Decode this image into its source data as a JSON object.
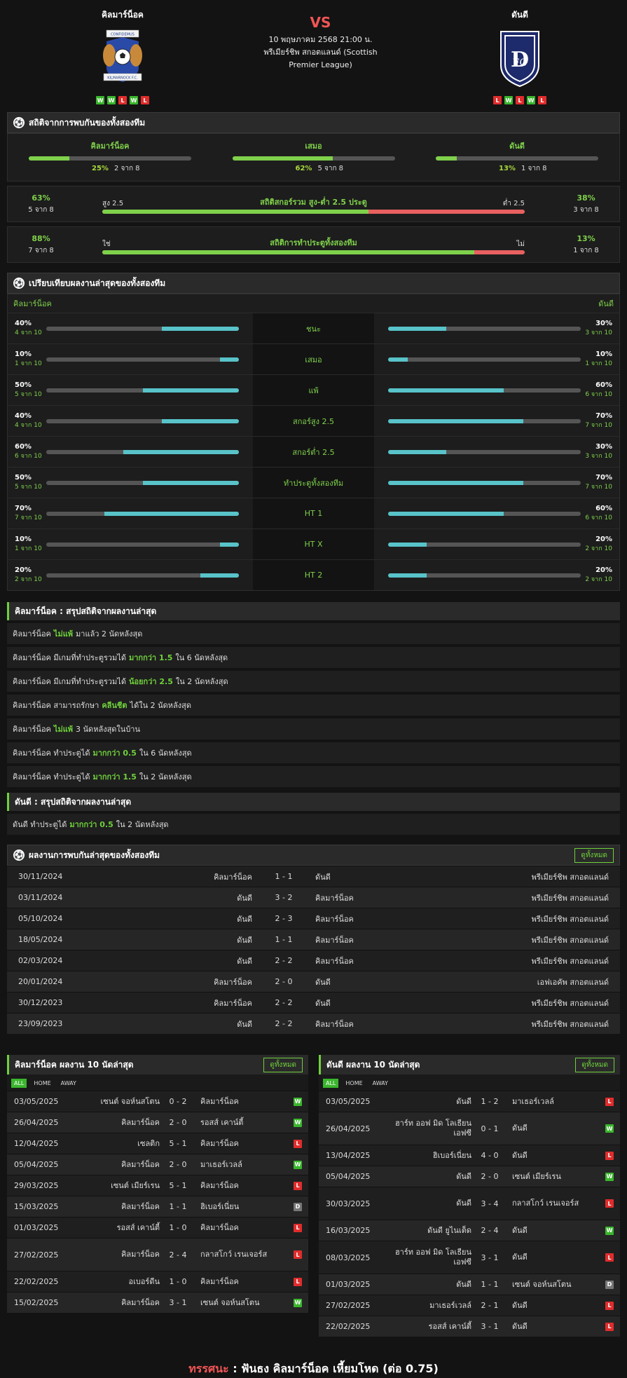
{
  "header": {
    "home_name": "คิลมาร์น็อค",
    "away_name": "ดันดี",
    "vs": "VS",
    "date": "10 พฤษภาคม 2568 21:00 น.",
    "league": "พรีเมียร์ชิพ สกอตแลนด์ (Scottish Premier League)",
    "home_form": [
      "W",
      "W",
      "L",
      "W",
      "L"
    ],
    "away_form": [
      "L",
      "W",
      "L",
      "W",
      "L"
    ],
    "home_crest_text": [
      "CONFIDEMUS",
      "KILMARNOCK F.C."
    ]
  },
  "h2h_section": {
    "title": "สถิติจากการพบกันของทั้งสองทีม",
    "items": [
      {
        "label": "คิลมาร์น็อค",
        "pct": "25%",
        "count": "2 จาก 8",
        "value": 25
      },
      {
        "label": "เสมอ",
        "pct": "62%",
        "count": "5 จาก 8",
        "value": 62
      },
      {
        "label": "ดันดี",
        "pct": "13%",
        "count": "1 จาก 8",
        "value": 13
      }
    ],
    "ou": {
      "title": "สถิติสกอร์รวม สูง-ต่ำ 2.5 ประตู",
      "left_label": "สูง 2.5",
      "right_label": "ต่ำ 2.5",
      "left_pct": "63%",
      "left_count": "5 จาก 8",
      "right_pct": "38%",
      "right_count": "3 จาก 8",
      "value": 63
    },
    "btts": {
      "title": "สถิติการทำประตูทั้งสองทีม",
      "left_label": "ใช่",
      "right_label": "ไม่",
      "left_pct": "88%",
      "left_count": "7 จาก 8",
      "right_pct": "13%",
      "right_count": "1 จาก 8",
      "value": 88
    }
  },
  "compare": {
    "title": "เปรียบเทียบผลงานล่าสุดของทั้งสองทีม",
    "home": "คิลมาร์น็อค",
    "away": "ดันดี",
    "rows": [
      {
        "label": "ชนะ",
        "hp": "40%",
        "hc": "4 จาก 10",
        "hv": 40,
        "ap": "30%",
        "ac": "3 จาก 10",
        "av": 30
      },
      {
        "label": "เสมอ",
        "hp": "10%",
        "hc": "1 จาก 10",
        "hv": 10,
        "ap": "10%",
        "ac": "1 จาก 10",
        "av": 10
      },
      {
        "label": "แพ้",
        "hp": "50%",
        "hc": "5 จาก 10",
        "hv": 50,
        "ap": "60%",
        "ac": "6 จาก 10",
        "av": 60
      },
      {
        "label": "สกอร์สูง 2.5",
        "hp": "40%",
        "hc": "4 จาก 10",
        "hv": 40,
        "ap": "70%",
        "ac": "7 จาก 10",
        "av": 70
      },
      {
        "label": "สกอร์ต่ำ 2.5",
        "hp": "60%",
        "hc": "6 จาก 10",
        "hv": 60,
        "ap": "30%",
        "ac": "3 จาก 10",
        "av": 30
      },
      {
        "label": "ทำประตูทั้งสองทีม",
        "hp": "50%",
        "hc": "5 จาก 10",
        "hv": 50,
        "ap": "70%",
        "ac": "7 จาก 10",
        "av": 70
      },
      {
        "label": "HT 1",
        "hp": "70%",
        "hc": "7 จาก 10",
        "hv": 70,
        "ap": "60%",
        "ac": "6 จาก 10",
        "av": 60
      },
      {
        "label": "HT X",
        "hp": "10%",
        "hc": "1 จาก 10",
        "hv": 10,
        "ap": "20%",
        "ac": "2 จาก 10",
        "av": 20
      },
      {
        "label": "HT 2",
        "hp": "20%",
        "hc": "2 จาก 10",
        "hv": 20,
        "ap": "20%",
        "ac": "2 จาก 10",
        "av": 20
      }
    ]
  },
  "home_summary": {
    "title": "คิลมาร์น็อค : สรุปสถิติจากผลงานล่าสุด",
    "rows": [
      {
        "a": "คิลมาร์น็อค",
        "hl": "ไม่แพ้",
        "b": "มาแล้ว 2 นัดหลังสุด"
      },
      {
        "a": "คิลมาร์น็อค มีเกมที่ทำประตูรวมได้",
        "hl": "มากกว่า 1.5",
        "b": "ใน 6 นัดหลังสุด"
      },
      {
        "a": "คิลมาร์น็อค มีเกมที่ทำประตูรวมได้",
        "hl": "น้อยกว่า 2.5",
        "b": "ใน 2 นัดหลังสุด"
      },
      {
        "a": "คิลมาร์น็อค สามารถรักษา",
        "hl": "คลีนชีต",
        "b": "ได้ใน 2 นัดหลังสุด"
      },
      {
        "a": "คิลมาร์น็อค",
        "hl": "ไม่แพ้",
        "b": "3 นัดหลังสุดในบ้าน"
      },
      {
        "a": "คิลมาร์น็อค ทำประตูได้",
        "hl": "มากกว่า 0.5",
        "b": "ใน 6 นัดหลังสุด"
      },
      {
        "a": "คิลมาร์น็อค ทำประตูได้",
        "hl": "มากกว่า 1.5",
        "b": "ใน 2 นัดหลังสุด"
      }
    ]
  },
  "away_summary": {
    "title": "ดันดี : สรุปสถิติจากผลงานล่าสุด",
    "rows": [
      {
        "a": "ดันดี ทำประตูได้",
        "hl": "มากกว่า 0.5",
        "b": "ใน 2 นัดหลังสุด"
      }
    ]
  },
  "h2h_matches": {
    "title": "ผลงานการพบกันล่าสุดของทั้งสองทีม",
    "view_all": "ดูทั้งหมด",
    "rows": [
      {
        "date": "30/11/2024",
        "home": "คิลมาร์น็อค",
        "score": "1 - 1",
        "away": "ดันดี",
        "league": "พรีเมียร์ชิพ สกอตแลนด์"
      },
      {
        "date": "03/11/2024",
        "home": "ดันดี",
        "score": "3 - 2",
        "away": "คิลมาร์น็อค",
        "league": "พรีเมียร์ชิพ สกอตแลนด์"
      },
      {
        "date": "05/10/2024",
        "home": "ดันดี",
        "score": "2 - 3",
        "away": "คิลมาร์น็อค",
        "league": "พรีเมียร์ชิพ สกอตแลนด์"
      },
      {
        "date": "18/05/2024",
        "home": "ดันดี",
        "score": "1 - 1",
        "away": "คิลมาร์น็อค",
        "league": "พรีเมียร์ชิพ สกอตแลนด์"
      },
      {
        "date": "02/03/2024",
        "home": "ดันดี",
        "score": "2 - 2",
        "away": "คิลมาร์น็อค",
        "league": "พรีเมียร์ชิพ สกอตแลนด์"
      },
      {
        "date": "20/01/2024",
        "home": "คิลมาร์น็อค",
        "score": "2 - 0",
        "away": "ดันดี",
        "league": "เอฟเอคัพ สกอตแลนด์"
      },
      {
        "date": "30/12/2023",
        "home": "คิลมาร์น็อค",
        "score": "2 - 2",
        "away": "ดันดี",
        "league": "พรีเมียร์ชิพ สกอตแลนด์"
      },
      {
        "date": "23/09/2023",
        "home": "ดันดี",
        "score": "2 - 2",
        "away": "คิลมาร์น็อค",
        "league": "พรีเมียร์ชิพ สกอตแลนด์"
      }
    ]
  },
  "home_last10": {
    "title": "คิลมาร์น็อค ผลงาน 10 นัดล่าสุด",
    "view_all": "ดูทั้งหมด",
    "tabs": [
      "ALL",
      "HOME",
      "AWAY"
    ],
    "rows": [
      {
        "date": "03/05/2025",
        "home": "เซนต์ จอห์นสโตน",
        "score": "0 - 2",
        "away": "คิลมาร์น็อค",
        "res": "W"
      },
      {
        "date": "26/04/2025",
        "home": "คิลมาร์น็อค",
        "score": "2 - 0",
        "away": "รอสส์ เคาน์ตี้",
        "res": "W"
      },
      {
        "date": "12/04/2025",
        "home": "เซลติก",
        "score": "5 - 1",
        "away": "คิลมาร์น็อค",
        "res": "L"
      },
      {
        "date": "05/04/2025",
        "home": "คิลมาร์น็อค",
        "score": "2 - 0",
        "away": "มาเธอร์เวลล์",
        "res": "W"
      },
      {
        "date": "29/03/2025",
        "home": "เซนต์ เมียร์เรน",
        "score": "5 - 1",
        "away": "คิลมาร์น็อค",
        "res": "L"
      },
      {
        "date": "15/03/2025",
        "home": "คิลมาร์น็อค",
        "score": "1 - 1",
        "away": "ฮิเบอร์เนี่ยน",
        "res": "D"
      },
      {
        "date": "01/03/2025",
        "home": "รอสส์ เคาน์ตี้",
        "score": "1 - 0",
        "away": "คิลมาร์น็อค",
        "res": "L"
      },
      {
        "date": "27/02/2025",
        "home": "คิลมาร์น็อค",
        "score": "2 - 4",
        "away": "กลาสโกว์ เรนเจอร์ส",
        "res": "L"
      },
      {
        "date": "22/02/2025",
        "home": "อเบอร์ดีน",
        "score": "1 - 0",
        "away": "คิลมาร์น็อค",
        "res": "L"
      },
      {
        "date": "15/02/2025",
        "home": "คิลมาร์น็อค",
        "score": "3 - 1",
        "away": "เซนต์ จอห์นสโตน",
        "res": "W"
      }
    ]
  },
  "away_last10": {
    "title": "ดันดี ผลงาน 10 นัดล่าสุด",
    "view_all": "ดูทั้งหมด",
    "tabs": [
      "ALL",
      "HOME",
      "AWAY"
    ],
    "rows": [
      {
        "date": "03/05/2025",
        "home": "ดันดี",
        "score": "1 - 2",
        "away": "มาเธอร์เวลล์",
        "res": "L"
      },
      {
        "date": "26/04/2025",
        "home": "ฮาร์ท ออฟ มิด โลเธียน เอฟซี",
        "score": "0 - 1",
        "away": "ดันดี",
        "res": "W"
      },
      {
        "date": "13/04/2025",
        "home": "ฮิเบอร์เนี่ยน",
        "score": "4 - 0",
        "away": "ดันดี",
        "res": "L"
      },
      {
        "date": "05/04/2025",
        "home": "ดันดี",
        "score": "2 - 0",
        "away": "เซนต์ เมียร์เรน",
        "res": "W"
      },
      {
        "date": "30/03/2025",
        "home": "ดันดี",
        "score": "3 - 4",
        "away": "กลาสโกว์ เรนเจอร์ส",
        "res": "L"
      },
      {
        "date": "16/03/2025",
        "home": "ดันดี ยูไนเต็ด",
        "score": "2 - 4",
        "away": "ดันดี",
        "res": "W"
      },
      {
        "date": "08/03/2025",
        "home": "ฮาร์ท ออฟ มิด โลเธียน เอฟซี",
        "score": "3 - 1",
        "away": "ดันดี",
        "res": "L"
      },
      {
        "date": "01/03/2025",
        "home": "ดันดี",
        "score": "1 - 1",
        "away": "เซนต์ จอห์นสโตน",
        "res": "D"
      },
      {
        "date": "27/02/2025",
        "home": "มาเธอร์เวลล์",
        "score": "2 - 1",
        "away": "ดันดี",
        "res": "L"
      },
      {
        "date": "22/02/2025",
        "home": "รอสส์ เคาน์ตี้",
        "score": "3 - 1",
        "away": "ดันดี",
        "res": "L"
      }
    ]
  },
  "footer": {
    "label": "ทรรศนะ",
    "sep": ":",
    "text": "ฟันธง คิลมาร์น็อค เหี้ยมโหด (ต่อ 0.75)"
  }
}
